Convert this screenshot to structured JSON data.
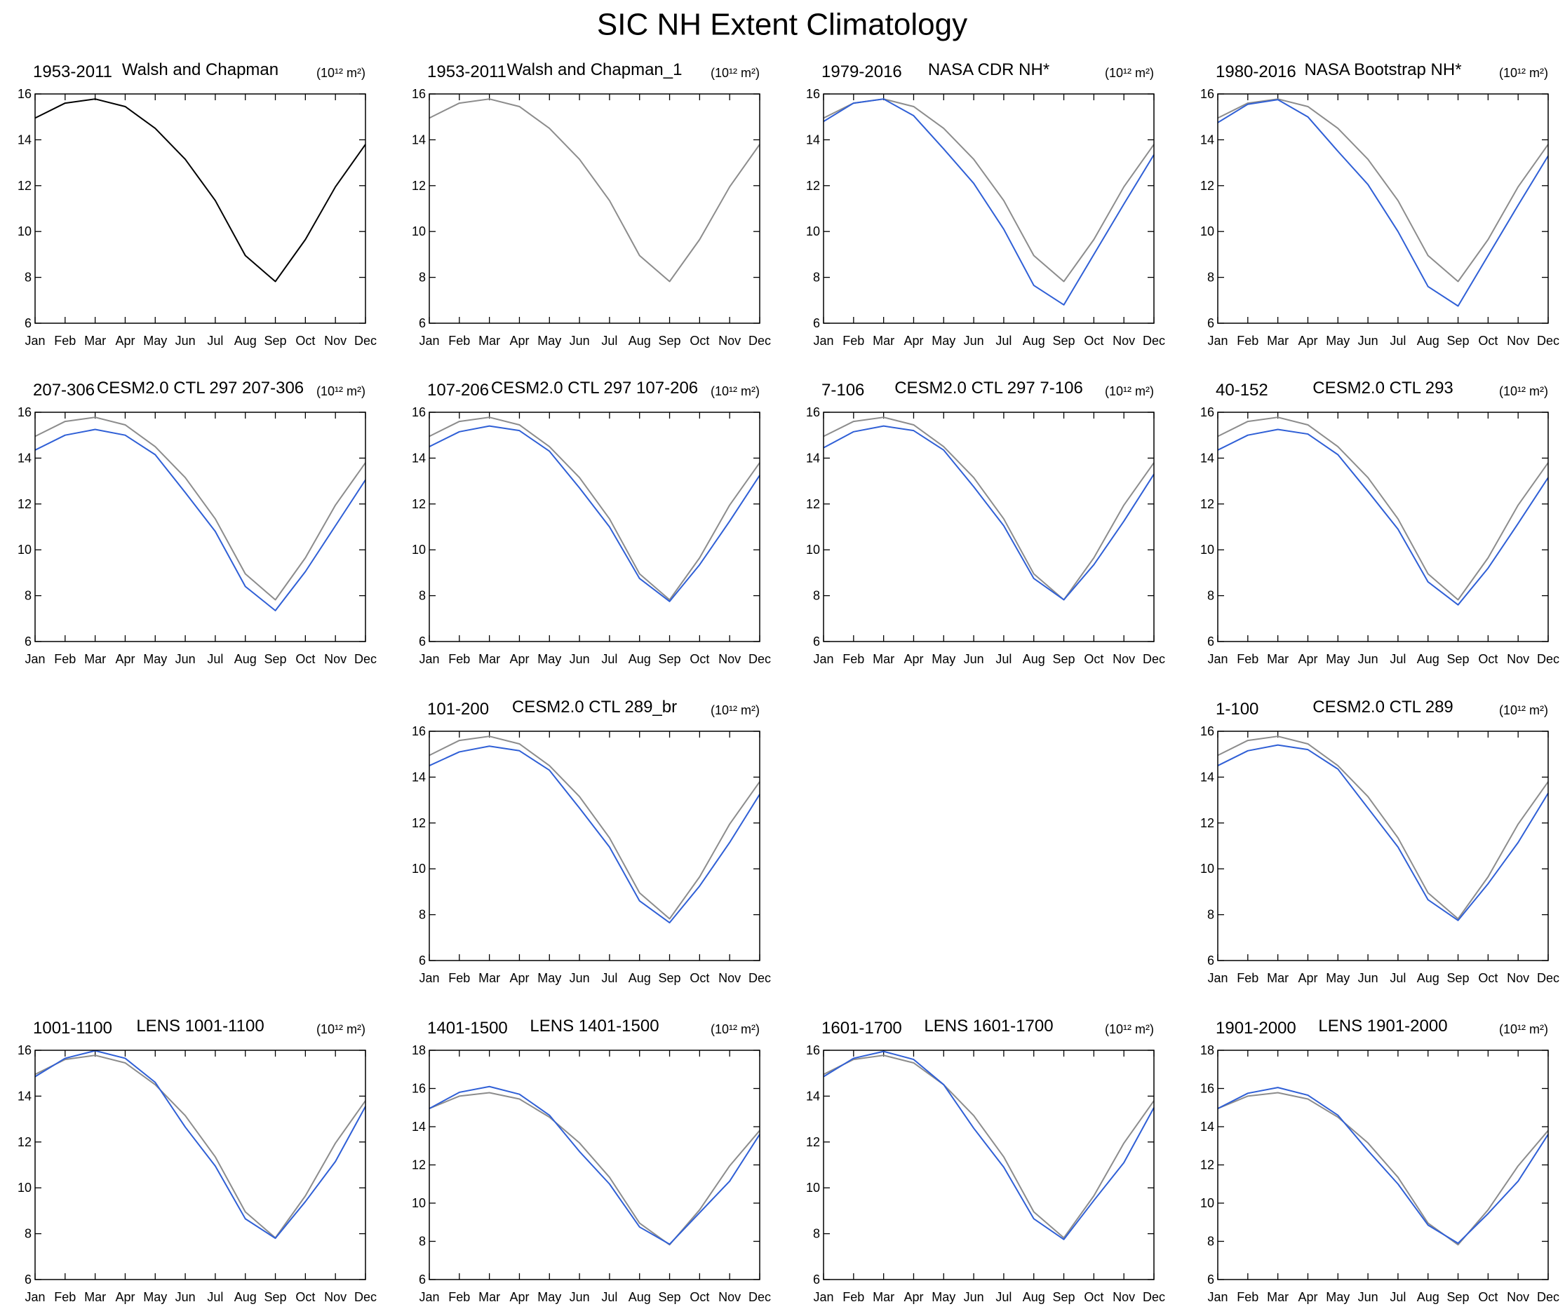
{
  "title": "SIC NH Extent Climatology",
  "chart_data": [
    {
      "type": "line",
      "left_title": "1953-2011",
      "title": "Walsh and Chapman",
      "units": "(10¹² m²)",
      "categories": [
        "Jan",
        "Feb",
        "Mar",
        "Apr",
        "May",
        "Jun",
        "Jul",
        "Aug",
        "Sep",
        "Oct",
        "Nov",
        "Dec"
      ],
      "ylim": [
        6,
        16
      ],
      "yticks": [
        6,
        8,
        10,
        12,
        14,
        16
      ],
      "series": [
        {
          "color": "#000000",
          "values": [
            14.95,
            15.6,
            15.78,
            15.45,
            14.5,
            13.15,
            11.35,
            8.95,
            7.82,
            9.65,
            11.95,
            13.8
          ]
        }
      ]
    },
    {
      "type": "line",
      "left_title": "1953-2011",
      "title": "Walsh and Chapman_1",
      "units": "(10¹² m²)",
      "categories": [
        "Jan",
        "Feb",
        "Mar",
        "Apr",
        "May",
        "Jun",
        "Jul",
        "Aug",
        "Sep",
        "Oct",
        "Nov",
        "Dec"
      ],
      "ylim": [
        6,
        16
      ],
      "yticks": [
        6,
        8,
        10,
        12,
        14,
        16
      ],
      "series": [
        {
          "color": "#8c8c8c",
          "values": [
            14.95,
            15.6,
            15.78,
            15.45,
            14.5,
            13.15,
            11.35,
            8.95,
            7.82,
            9.65,
            11.95,
            13.8
          ]
        }
      ]
    },
    {
      "type": "line",
      "left_title": "1979-2016",
      "title": "NASA CDR NH*",
      "units": "(10¹² m²)",
      "categories": [
        "Jan",
        "Feb",
        "Mar",
        "Apr",
        "May",
        "Jun",
        "Jul",
        "Aug",
        "Sep",
        "Oct",
        "Nov",
        "Dec"
      ],
      "ylim": [
        6,
        16
      ],
      "yticks": [
        6,
        8,
        10,
        12,
        14,
        16
      ],
      "series": [
        {
          "color": "#8c8c8c",
          "values": [
            14.95,
            15.6,
            15.78,
            15.45,
            14.5,
            13.15,
            11.35,
            8.95,
            7.82,
            9.65,
            11.95,
            13.8
          ]
        },
        {
          "color": "#2f5fd6",
          "values": [
            14.8,
            15.6,
            15.78,
            15.05,
            13.6,
            12.1,
            10.1,
            7.65,
            6.8,
            9.0,
            11.2,
            13.35
          ]
        }
      ]
    },
    {
      "type": "line",
      "left_title": "1980-2016",
      "title": "NASA Bootstrap NH*",
      "units": "(10¹² m²)",
      "categories": [
        "Jan",
        "Feb",
        "Mar",
        "Apr",
        "May",
        "Jun",
        "Jul",
        "Aug",
        "Sep",
        "Oct",
        "Nov",
        "Dec"
      ],
      "ylim": [
        6,
        16
      ],
      "yticks": [
        6,
        8,
        10,
        12,
        14,
        16
      ],
      "series": [
        {
          "color": "#8c8c8c",
          "values": [
            14.95,
            15.6,
            15.78,
            15.45,
            14.5,
            13.15,
            11.35,
            8.95,
            7.82,
            9.65,
            11.95,
            13.8
          ]
        },
        {
          "color": "#2f5fd6",
          "values": [
            14.75,
            15.55,
            15.75,
            15.0,
            13.5,
            12.05,
            10.0,
            7.6,
            6.75,
            8.95,
            11.15,
            13.3
          ]
        }
      ]
    },
    {
      "type": "line",
      "left_title": "207-306",
      "title": "CESM2.0 CTL 297 207-306",
      "units": "(10¹² m²)",
      "categories": [
        "Jan",
        "Feb",
        "Mar",
        "Apr",
        "May",
        "Jun",
        "Jul",
        "Aug",
        "Sep",
        "Oct",
        "Nov",
        "Dec"
      ],
      "ylim": [
        6,
        16
      ],
      "yticks": [
        6,
        8,
        10,
        12,
        14,
        16
      ],
      "series": [
        {
          "color": "#8c8c8c",
          "values": [
            14.95,
            15.6,
            15.78,
            15.45,
            14.5,
            13.15,
            11.35,
            8.95,
            7.82,
            9.65,
            11.95,
            13.8
          ]
        },
        {
          "color": "#2f5fd6",
          "values": [
            14.35,
            15.0,
            15.25,
            15.0,
            14.15,
            12.5,
            10.8,
            8.4,
            7.35,
            9.05,
            11.05,
            13.05
          ]
        }
      ]
    },
    {
      "type": "line",
      "left_title": "107-206",
      "title": "CESM2.0 CTL 297 107-206",
      "units": "(10¹² m²)",
      "categories": [
        "Jan",
        "Feb",
        "Mar",
        "Apr",
        "May",
        "Jun",
        "Jul",
        "Aug",
        "Sep",
        "Oct",
        "Nov",
        "Dec"
      ],
      "ylim": [
        6,
        16
      ],
      "yticks": [
        6,
        8,
        10,
        12,
        14,
        16
      ],
      "series": [
        {
          "color": "#8c8c8c",
          "values": [
            14.95,
            15.6,
            15.78,
            15.45,
            14.5,
            13.15,
            11.35,
            8.95,
            7.82,
            9.65,
            11.95,
            13.8
          ]
        },
        {
          "color": "#2f5fd6",
          "values": [
            14.5,
            15.15,
            15.4,
            15.2,
            14.3,
            12.7,
            11.0,
            8.75,
            7.75,
            9.35,
            11.25,
            13.25
          ]
        }
      ]
    },
    {
      "type": "line",
      "left_title": "7-106",
      "title": "CESM2.0 CTL 297 7-106",
      "units": "(10¹² m²)",
      "categories": [
        "Jan",
        "Feb",
        "Mar",
        "Apr",
        "May",
        "Jun",
        "Jul",
        "Aug",
        "Sep",
        "Oct",
        "Nov",
        "Dec"
      ],
      "ylim": [
        6,
        16
      ],
      "yticks": [
        6,
        8,
        10,
        12,
        14,
        16
      ],
      "series": [
        {
          "color": "#8c8c8c",
          "values": [
            14.95,
            15.6,
            15.78,
            15.45,
            14.5,
            13.15,
            11.35,
            8.95,
            7.82,
            9.65,
            11.95,
            13.8
          ]
        },
        {
          "color": "#2f5fd6",
          "values": [
            14.45,
            15.15,
            15.4,
            15.2,
            14.35,
            12.75,
            11.05,
            8.75,
            7.82,
            9.35,
            11.25,
            13.3
          ]
        }
      ]
    },
    {
      "type": "line",
      "left_title": "40-152",
      "title": "CESM2.0 CTL 293",
      "units": "(10¹² m²)",
      "categories": [
        "Jan",
        "Feb",
        "Mar",
        "Apr",
        "May",
        "Jun",
        "Jul",
        "Aug",
        "Sep",
        "Oct",
        "Nov",
        "Dec"
      ],
      "ylim": [
        6,
        16
      ],
      "yticks": [
        6,
        8,
        10,
        12,
        14,
        16
      ],
      "series": [
        {
          "color": "#8c8c8c",
          "values": [
            14.95,
            15.6,
            15.78,
            15.45,
            14.5,
            13.15,
            11.35,
            8.95,
            7.82,
            9.65,
            11.95,
            13.8
          ]
        },
        {
          "color": "#2f5fd6",
          "values": [
            14.35,
            15.0,
            15.25,
            15.05,
            14.15,
            12.55,
            10.9,
            8.6,
            7.6,
            9.2,
            11.15,
            13.15
          ]
        }
      ]
    },
    {
      "type": "line",
      "left_title": "101-200",
      "title": "CESM2.0 CTL 289_br",
      "units": "(10¹² m²)",
      "categories": [
        "Jan",
        "Feb",
        "Mar",
        "Apr",
        "May",
        "Jun",
        "Jul",
        "Aug",
        "Sep",
        "Oct",
        "Nov",
        "Dec"
      ],
      "ylim": [
        6,
        16
      ],
      "yticks": [
        6,
        8,
        10,
        12,
        14,
        16
      ],
      "series": [
        {
          "color": "#8c8c8c",
          "values": [
            14.95,
            15.6,
            15.78,
            15.45,
            14.5,
            13.15,
            11.35,
            8.95,
            7.82,
            9.65,
            11.95,
            13.8
          ]
        },
        {
          "color": "#2f5fd6",
          "values": [
            14.5,
            15.1,
            15.35,
            15.15,
            14.3,
            12.65,
            10.95,
            8.6,
            7.65,
            9.25,
            11.15,
            13.25
          ]
        }
      ]
    },
    {
      "type": "line",
      "left_title": "1-100",
      "title": "CESM2.0 CTL 289",
      "units": "(10¹² m²)",
      "categories": [
        "Jan",
        "Feb",
        "Mar",
        "Apr",
        "May",
        "Jun",
        "Jul",
        "Aug",
        "Sep",
        "Oct",
        "Nov",
        "Dec"
      ],
      "ylim": [
        6,
        16
      ],
      "yticks": [
        6,
        8,
        10,
        12,
        14,
        16
      ],
      "series": [
        {
          "color": "#8c8c8c",
          "values": [
            14.95,
            15.6,
            15.78,
            15.45,
            14.5,
            13.15,
            11.35,
            8.95,
            7.82,
            9.65,
            11.95,
            13.8
          ]
        },
        {
          "color": "#2f5fd6",
          "values": [
            14.5,
            15.15,
            15.4,
            15.2,
            14.35,
            12.65,
            10.95,
            8.65,
            7.75,
            9.35,
            11.15,
            13.3
          ]
        }
      ]
    },
    {
      "type": "line",
      "left_title": "1001-1100",
      "title": "LENS 1001-1100",
      "units": "(10¹² m²)",
      "categories": [
        "Jan",
        "Feb",
        "Mar",
        "Apr",
        "May",
        "Jun",
        "Jul",
        "Aug",
        "Sep",
        "Oct",
        "Nov",
        "Dec"
      ],
      "ylim": [
        6,
        16
      ],
      "yticks": [
        6,
        8,
        10,
        12,
        14,
        16
      ],
      "series": [
        {
          "color": "#8c8c8c",
          "values": [
            14.95,
            15.6,
            15.78,
            15.45,
            14.5,
            13.15,
            11.35,
            8.95,
            7.82,
            9.65,
            11.95,
            13.8
          ]
        },
        {
          "color": "#2f5fd6",
          "values": [
            14.85,
            15.65,
            15.98,
            15.65,
            14.6,
            12.65,
            10.95,
            8.65,
            7.8,
            9.4,
            11.15,
            13.55
          ]
        }
      ]
    },
    {
      "type": "line",
      "left_title": "1401-1500",
      "title": "LENS 1401-1500",
      "units": "(10¹² m²)",
      "categories": [
        "Jan",
        "Feb",
        "Mar",
        "Apr",
        "May",
        "Jun",
        "Jul",
        "Aug",
        "Sep",
        "Oct",
        "Nov",
        "Dec"
      ],
      "ylim": [
        6,
        18
      ],
      "yticks": [
        6,
        8,
        10,
        12,
        14,
        16,
        18
      ],
      "series": [
        {
          "color": "#8c8c8c",
          "values": [
            14.95,
            15.6,
            15.78,
            15.45,
            14.5,
            13.15,
            11.35,
            8.95,
            7.82,
            9.65,
            11.95,
            13.8
          ]
        },
        {
          "color": "#2f5fd6",
          "values": [
            14.95,
            15.8,
            16.1,
            15.7,
            14.6,
            12.7,
            11.0,
            8.75,
            7.85,
            9.5,
            11.15,
            13.6
          ]
        }
      ]
    },
    {
      "type": "line",
      "left_title": "1601-1700",
      "title": "LENS 1601-1700",
      "units": "(10¹² m²)",
      "categories": [
        "Jan",
        "Feb",
        "Mar",
        "Apr",
        "May",
        "Jun",
        "Jul",
        "Aug",
        "Sep",
        "Oct",
        "Nov",
        "Dec"
      ],
      "ylim": [
        6,
        16
      ],
      "yticks": [
        6,
        8,
        10,
        12,
        14,
        16
      ],
      "series": [
        {
          "color": "#8c8c8c",
          "values": [
            14.95,
            15.6,
            15.78,
            15.45,
            14.5,
            13.15,
            11.35,
            8.95,
            7.82,
            9.65,
            11.95,
            13.8
          ]
        },
        {
          "color": "#2f5fd6",
          "values": [
            14.85,
            15.65,
            15.95,
            15.6,
            14.5,
            12.6,
            10.9,
            8.65,
            7.75,
            9.45,
            11.1,
            13.5
          ]
        }
      ]
    },
    {
      "type": "line",
      "left_title": "1901-2000",
      "title": "LENS 1901-2000",
      "units": "(10¹² m²)",
      "categories": [
        "Jan",
        "Feb",
        "Mar",
        "Apr",
        "May",
        "Jun",
        "Jul",
        "Aug",
        "Sep",
        "Oct",
        "Nov",
        "Dec"
      ],
      "ylim": [
        6,
        18
      ],
      "yticks": [
        6,
        8,
        10,
        12,
        14,
        16,
        18
      ],
      "series": [
        {
          "color": "#8c8c8c",
          "values": [
            14.95,
            15.6,
            15.78,
            15.45,
            14.5,
            13.15,
            11.35,
            8.95,
            7.82,
            9.65,
            11.95,
            13.8
          ]
        },
        {
          "color": "#2f5fd6",
          "values": [
            14.95,
            15.75,
            16.05,
            15.65,
            14.6,
            12.75,
            11.0,
            8.85,
            7.9,
            9.45,
            11.15,
            13.6
          ]
        }
      ]
    }
  ]
}
